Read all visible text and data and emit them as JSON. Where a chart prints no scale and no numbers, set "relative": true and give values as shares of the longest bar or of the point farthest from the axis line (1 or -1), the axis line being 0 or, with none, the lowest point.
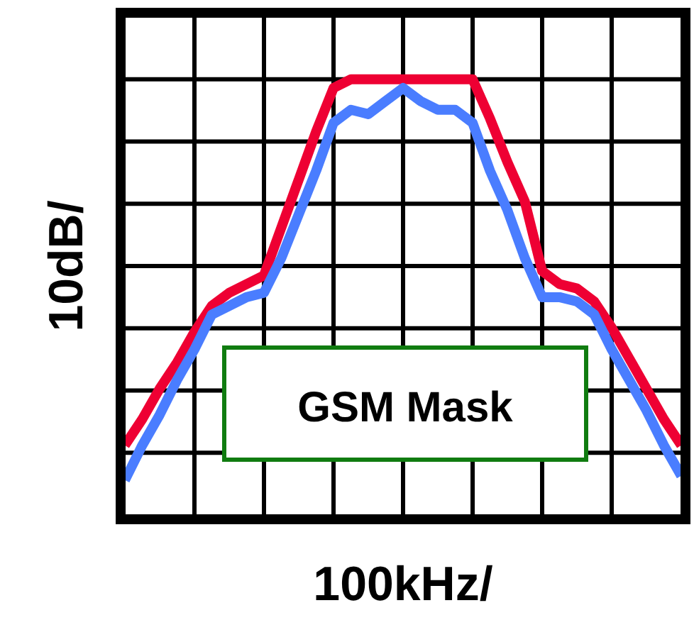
{
  "chart_data": {
    "type": "line",
    "relative": true,
    "xlabel": "100kHz/",
    "ylabel": "10dB/",
    "annotations": [
      "GSM Mask"
    ],
    "grid": true,
    "marker": "none",
    "line_style": "solid",
    "categories": [
      null,
      null,
      null,
      null,
      null,
      null,
      null,
      null,
      null,
      null,
      null,
      null,
      null,
      null,
      null,
      null,
      null,
      null,
      null,
      null,
      null,
      null,
      null,
      null,
      null,
      null,
      null,
      null,
      null,
      null,
      null,
      null,
      null
    ],
    "series": [
      {
        "color": "#ee0033",
        "values": [
          0.16,
          0.22,
          0.29,
          0.35,
          0.42,
          0.48,
          0.51,
          0.53,
          0.55,
          0.66,
          0.77,
          0.88,
          0.98,
          1,
          1,
          1,
          1,
          1,
          1,
          1,
          1,
          0.91,
          0.81,
          0.72,
          0.56,
          0.53,
          0.52,
          0.49,
          0.43,
          0.36,
          0.29,
          0.22,
          0.16
        ]
      },
      {
        "color": "#4a7dff",
        "values": [
          0.08,
          0.16,
          0.23,
          0.31,
          0.38,
          0.46,
          0.48,
          0.5,
          0.51,
          0.59,
          0.69,
          0.79,
          0.9,
          0.93,
          0.92,
          0.95,
          0.98,
          0.95,
          0.93,
          0.93,
          0.9,
          0.79,
          0.7,
          0.59,
          0.5,
          0.5,
          0.49,
          0.46,
          0.38,
          0.31,
          0.24,
          0.16,
          0.09
        ]
      }
    ]
  }
}
